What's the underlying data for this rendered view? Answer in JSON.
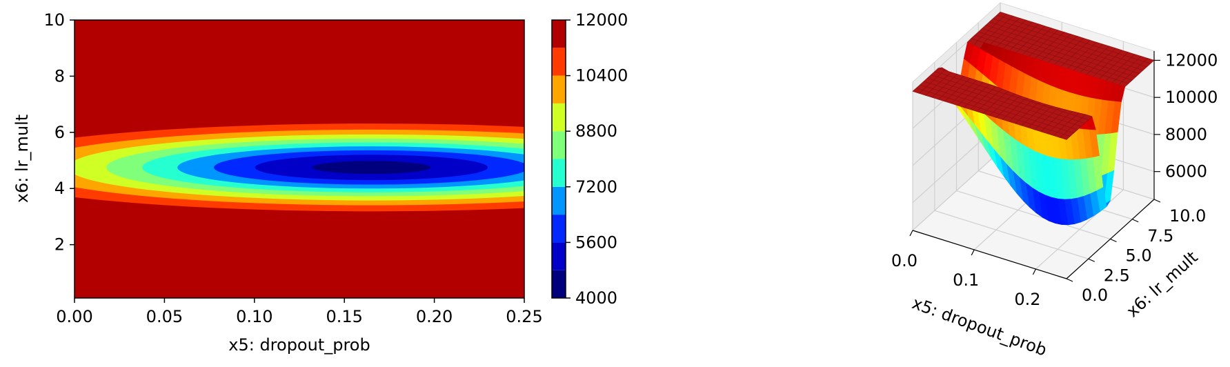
{
  "chart_data": [
    {
      "type": "contourf",
      "xlabel": "x5: dropout_prob",
      "ylabel": "x6: lr_mult",
      "xlim": [
        0,
        0.25
      ],
      "ylim": [
        0.1,
        10
      ],
      "xticks": [
        "0.00",
        "0.05",
        "0.10",
        "0.15",
        "0.20",
        "0.25"
      ],
      "yticks": [
        "2",
        "4",
        "6",
        "8",
        "10"
      ],
      "colormap": "jet",
      "min_value": 4500,
      "min_location": {
        "x": 0.165,
        "y": 4.75
      },
      "contour_levels": [
        4000,
        4800,
        5600,
        6400,
        7200,
        8000,
        8800,
        9600,
        10400,
        11200,
        12000
      ],
      "colorbar": {
        "ticks": [
          "4000",
          "5600",
          "7200",
          "8800",
          "10400",
          "12000"
        ],
        "colors": [
          "#00007f",
          "#0000c8",
          "#0028ff",
          "#0096ff",
          "#26ffd0",
          "#80ff7b",
          "#d0ff26",
          "#ffa500",
          "#ff3b00",
          "#b20000"
        ]
      }
    },
    {
      "type": "surface3d",
      "xlabel": "x5: dropout_prob",
      "ylabel": "x6: lr_mult",
      "xticks": [
        "0.0",
        "0.1",
        "0.2"
      ],
      "yticks": [
        "0.0",
        "2.5",
        "5.0",
        "7.5",
        "10.0"
      ],
      "zticks": [
        "6000",
        "8000",
        "10000",
        "12000"
      ],
      "colormap": "jet",
      "zlim": [
        4500,
        12000
      ]
    }
  ]
}
